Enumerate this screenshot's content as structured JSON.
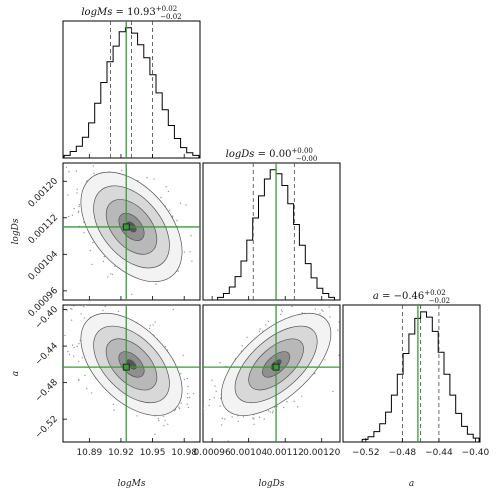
{
  "chart_data": {
    "type": "corner",
    "parameters": [
      {
        "name": "logMs",
        "median": 10.93,
        "lo": 10.91,
        "hi": 10.95,
        "truth": 10.925,
        "axis_range": [
          10.865,
          10.995
        ],
        "ticks": [
          10.89,
          10.92,
          10.95,
          10.98
        ],
        "tick_labels": [
          "10.89",
          "10.92",
          "10.95",
          "10.98"
        ],
        "title": {
          "lhs": "logMs",
          "eq": " = ",
          "val": "10.93",
          "sup": "+0.02",
          "sub": "−0.02"
        },
        "xlabel": "logMs",
        "ylabel": "",
        "hist": [
          0.02,
          0.05,
          0.09,
          0.16,
          0.27,
          0.42,
          0.58,
          0.74,
          0.86,
          0.97,
          1.0,
          0.96,
          0.87,
          0.77,
          0.64,
          0.5,
          0.37,
          0.25,
          0.15,
          0.08,
          0.04,
          0.02
        ]
      },
      {
        "name": "logDs",
        "median": 0.0011,
        "lo": 0.00105,
        "hi": 0.00114,
        "truth": 0.0011,
        "axis_range": [
          0.00094,
          0.00124
        ],
        "ticks": [
          0.00096,
          0.00104,
          0.00112,
          0.0012
        ],
        "tick_labels": [
          "0.00096",
          "0.00104",
          "0.00112",
          "0.00120"
        ],
        "title": {
          "lhs": "logDs",
          "eq": " = ",
          "val": "0.00",
          "sup": "+0.00",
          "sub": "−0.00"
        },
        "xlabel": "logDs",
        "ylabel": "logDs",
        "hist": [
          0.02,
          0.05,
          0.1,
          0.18,
          0.3,
          0.46,
          0.63,
          0.8,
          0.93,
          1.0,
          0.97,
          0.88,
          0.74,
          0.58,
          0.42,
          0.28,
          0.17,
          0.09,
          0.05,
          0.02
        ]
      },
      {
        "name": "a",
        "median": -0.46,
        "lo": -0.48,
        "hi": -0.44,
        "truth": -0.463,
        "axis_range": [
          -0.545,
          -0.395
        ],
        "ticks": [
          -0.52,
          -0.48,
          -0.44,
          -0.4
        ],
        "tick_labels": [
          "−0.52",
          "−0.48",
          "−0.44",
          "−0.40"
        ],
        "y_ticks": [
          -0.52,
          -0.48,
          -0.44,
          -0.4
        ],
        "y_tick_labels": [
          "−0.52",
          "−0.48",
          "−0.44",
          "−0.40"
        ],
        "title": {
          "lhs": "a",
          "eq": " = ",
          "val": "−0.46",
          "sup": "+0.02",
          "sub": "−0.02"
        },
        "xlabel": "a",
        "ylabel": "a",
        "hist": [
          0.02,
          0.04,
          0.08,
          0.14,
          0.23,
          0.36,
          0.52,
          0.68,
          0.83,
          0.95,
          1.0,
          0.96,
          0.85,
          0.69,
          0.52,
          0.36,
          0.22,
          0.12,
          0.06,
          0.03
        ]
      }
    ],
    "pairs": [
      {
        "x": "logMs",
        "y": "logDs",
        "sx": 0.024,
        "sy": 6e-05,
        "rho": -0.45
      },
      {
        "x": "logMs",
        "y": "a",
        "sx": 0.024,
        "sy": 0.028,
        "rho": -0.5
      },
      {
        "x": "logDs",
        "y": "a",
        "sx": 6e-05,
        "sy": 0.028,
        "rho": 0.6
      }
    ],
    "contour_sigmas": [
      0.5,
      1.0,
      1.5,
      2.0
    ],
    "colors": {
      "truth": "#3a9a3a",
      "hist": "#000000",
      "quantile": "#444444",
      "contour": "#555555"
    }
  }
}
